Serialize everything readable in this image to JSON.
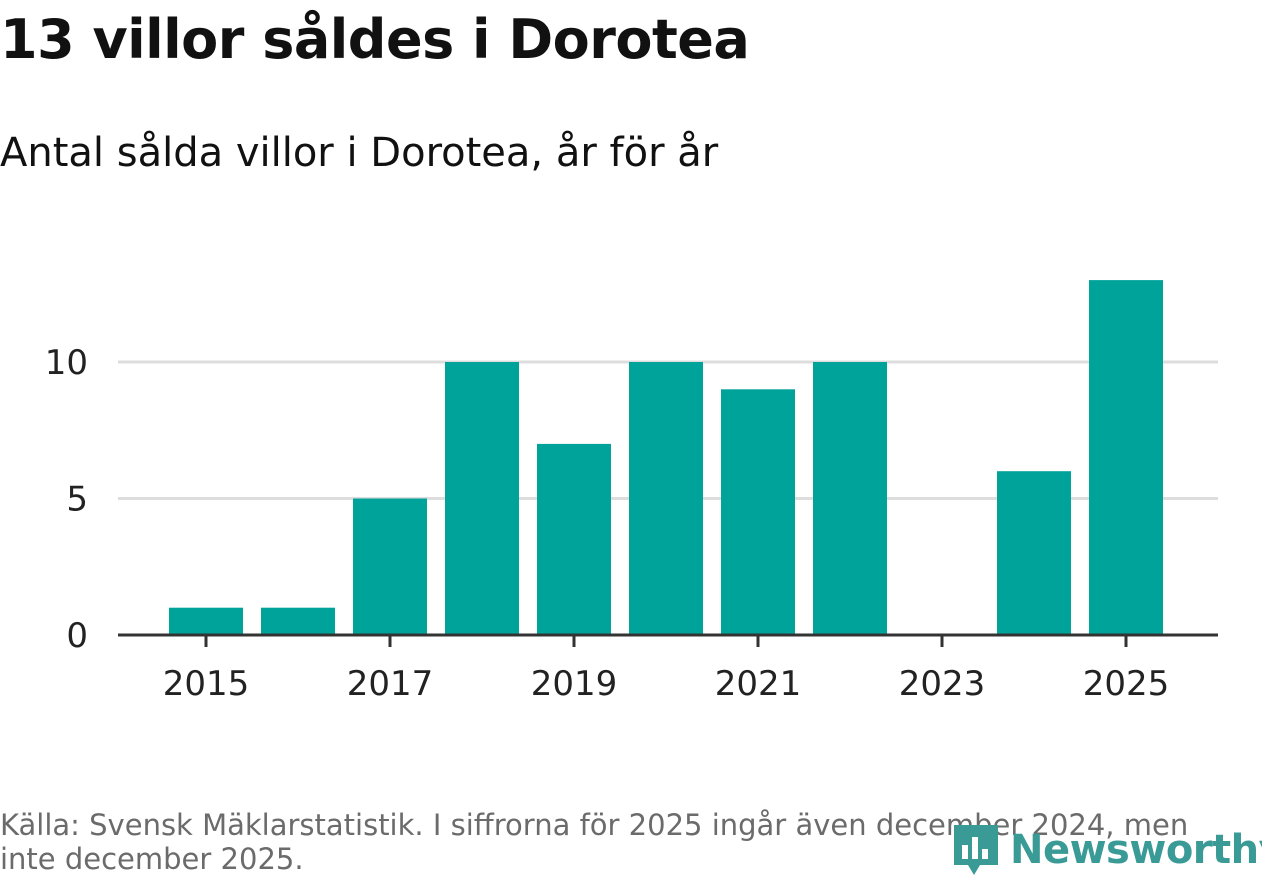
{
  "title": "13 villor såldes i Dorotea",
  "subtitle": "Antal sålda villor i Dorotea, år för år",
  "source": "Källa: Svensk Mäklarstatistik. I siffrorna för 2025 ingår även december 2024, men inte december 2025.",
  "brand": {
    "name": "Newsworthy",
    "icon": "newsworthy-logo-icon",
    "color": "#3a9a96"
  },
  "colors": {
    "bar": "#00a39a",
    "grid": "#dddddd",
    "axis": "#333333"
  },
  "chart_data": {
    "type": "bar",
    "categories": [
      "2015",
      "2016",
      "2017",
      "2018",
      "2019",
      "2020",
      "2021",
      "2022",
      "2023",
      "2024",
      "2025"
    ],
    "values": [
      1,
      1,
      5,
      10,
      7,
      10,
      9,
      10,
      0,
      6,
      13
    ],
    "x_tick_labels": [
      "2015",
      "2017",
      "2019",
      "2021",
      "2023",
      "2025"
    ],
    "y_ticks": [
      0,
      5,
      10
    ],
    "ylim": [
      0,
      13
    ],
    "grid": true,
    "legend": "none",
    "xlabel": "",
    "ylabel": ""
  }
}
